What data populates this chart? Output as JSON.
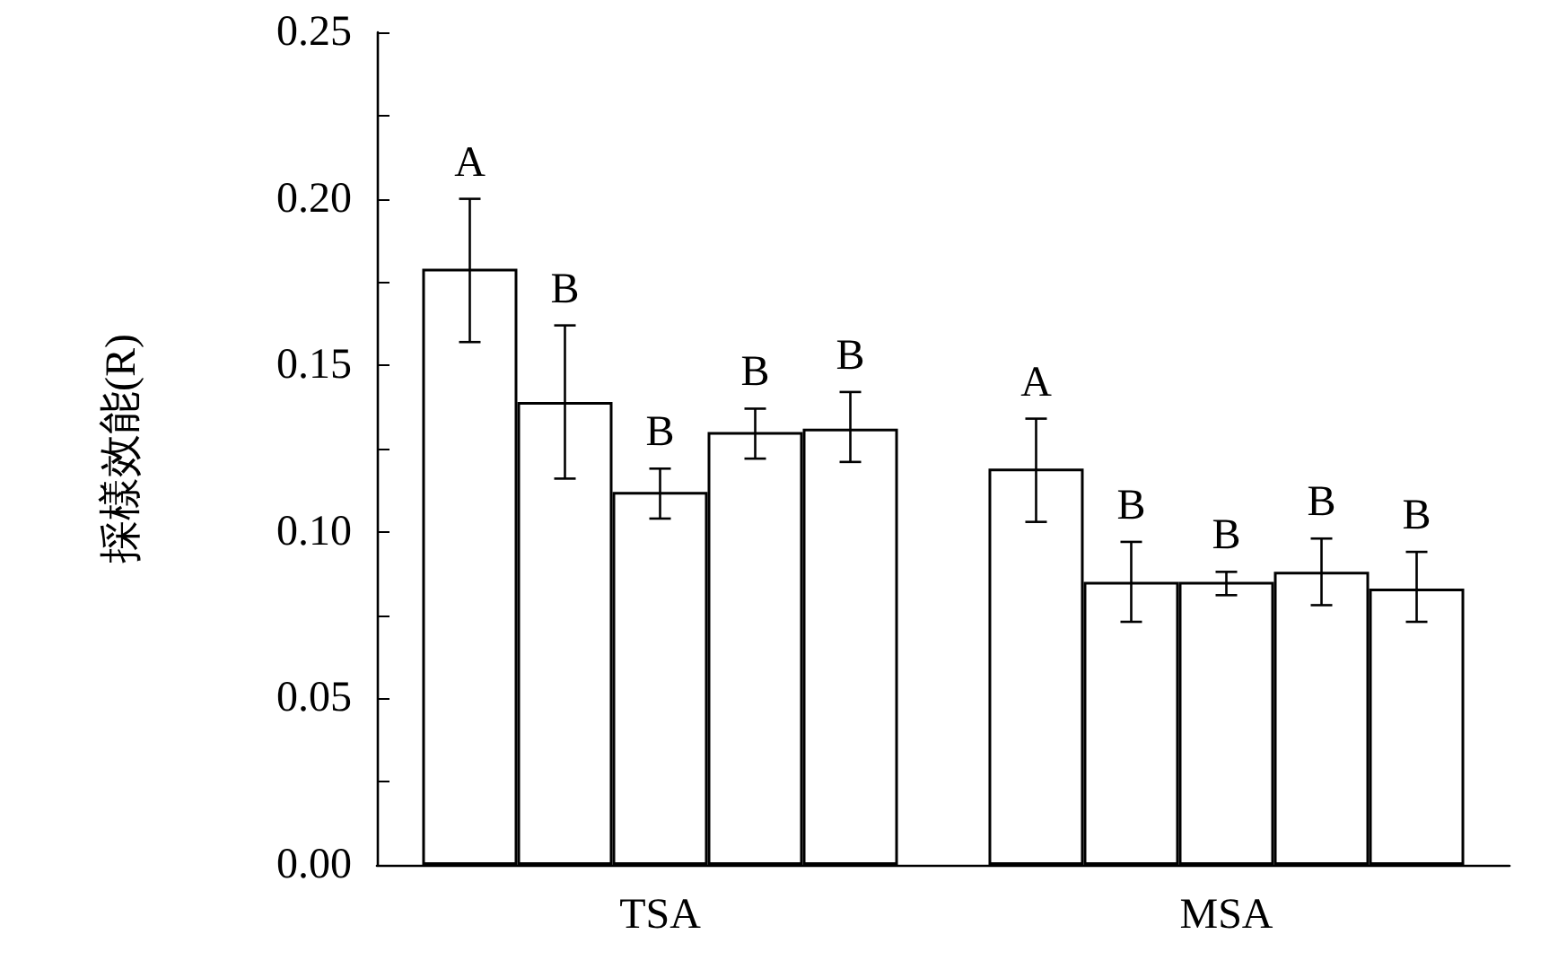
{
  "chart_data": {
    "type": "bar",
    "ylabel": "採樣效能(R)",
    "categories": [
      "TSA",
      "MSA"
    ],
    "series": [
      {
        "color": "#ffffff",
        "values": [
          0.179,
          0.119
        ],
        "errors": [
          [
            0.157,
            0.2
          ],
          [
            0.103,
            0.134
          ]
        ],
        "value_labels": [
          "A",
          "A"
        ]
      },
      {
        "color": "#ffffff",
        "values": [
          0.139,
          0.085
        ],
        "errors": [
          [
            0.116,
            0.162
          ],
          [
            0.073,
            0.097
          ]
        ],
        "value_labels": [
          "B",
          "B"
        ]
      },
      {
        "color": "#ffffff",
        "values": [
          0.112,
          0.085
        ],
        "errors": [
          [
            0.104,
            0.119
          ],
          [
            0.081,
            0.088
          ]
        ],
        "value_labels": [
          "B",
          "B"
        ]
      },
      {
        "color": "#ffffff",
        "values": [
          0.13,
          0.088
        ],
        "errors": [
          [
            0.122,
            0.137
          ],
          [
            0.078,
            0.098
          ]
        ],
        "value_labels": [
          "B",
          "B"
        ]
      },
      {
        "color": "#ffffff",
        "values": [
          0.131,
          0.083
        ],
        "errors": [
          [
            0.121,
            0.142
          ],
          [
            0.073,
            0.094
          ]
        ],
        "value_labels": [
          "B",
          "B"
        ]
      }
    ],
    "ylim": [
      0,
      0.25
    ],
    "yticks": [
      {
        "value": 0,
        "label": "0.00"
      },
      {
        "value": 0.025,
        "label": null
      },
      {
        "value": 0.05,
        "label": "0.05"
      },
      {
        "value": 0.075,
        "label": null
      },
      {
        "value": 0.1,
        "label": "0.10"
      },
      {
        "value": 0.125,
        "label": null
      },
      {
        "value": 0.15,
        "label": "0.15"
      },
      {
        "value": 0.175,
        "label": null
      },
      {
        "value": 0.2,
        "label": "0.20"
      },
      {
        "value": 0.225,
        "label": null
      },
      {
        "value": 0.25,
        "label": "0.25"
      }
    ],
    "grid": false
  }
}
